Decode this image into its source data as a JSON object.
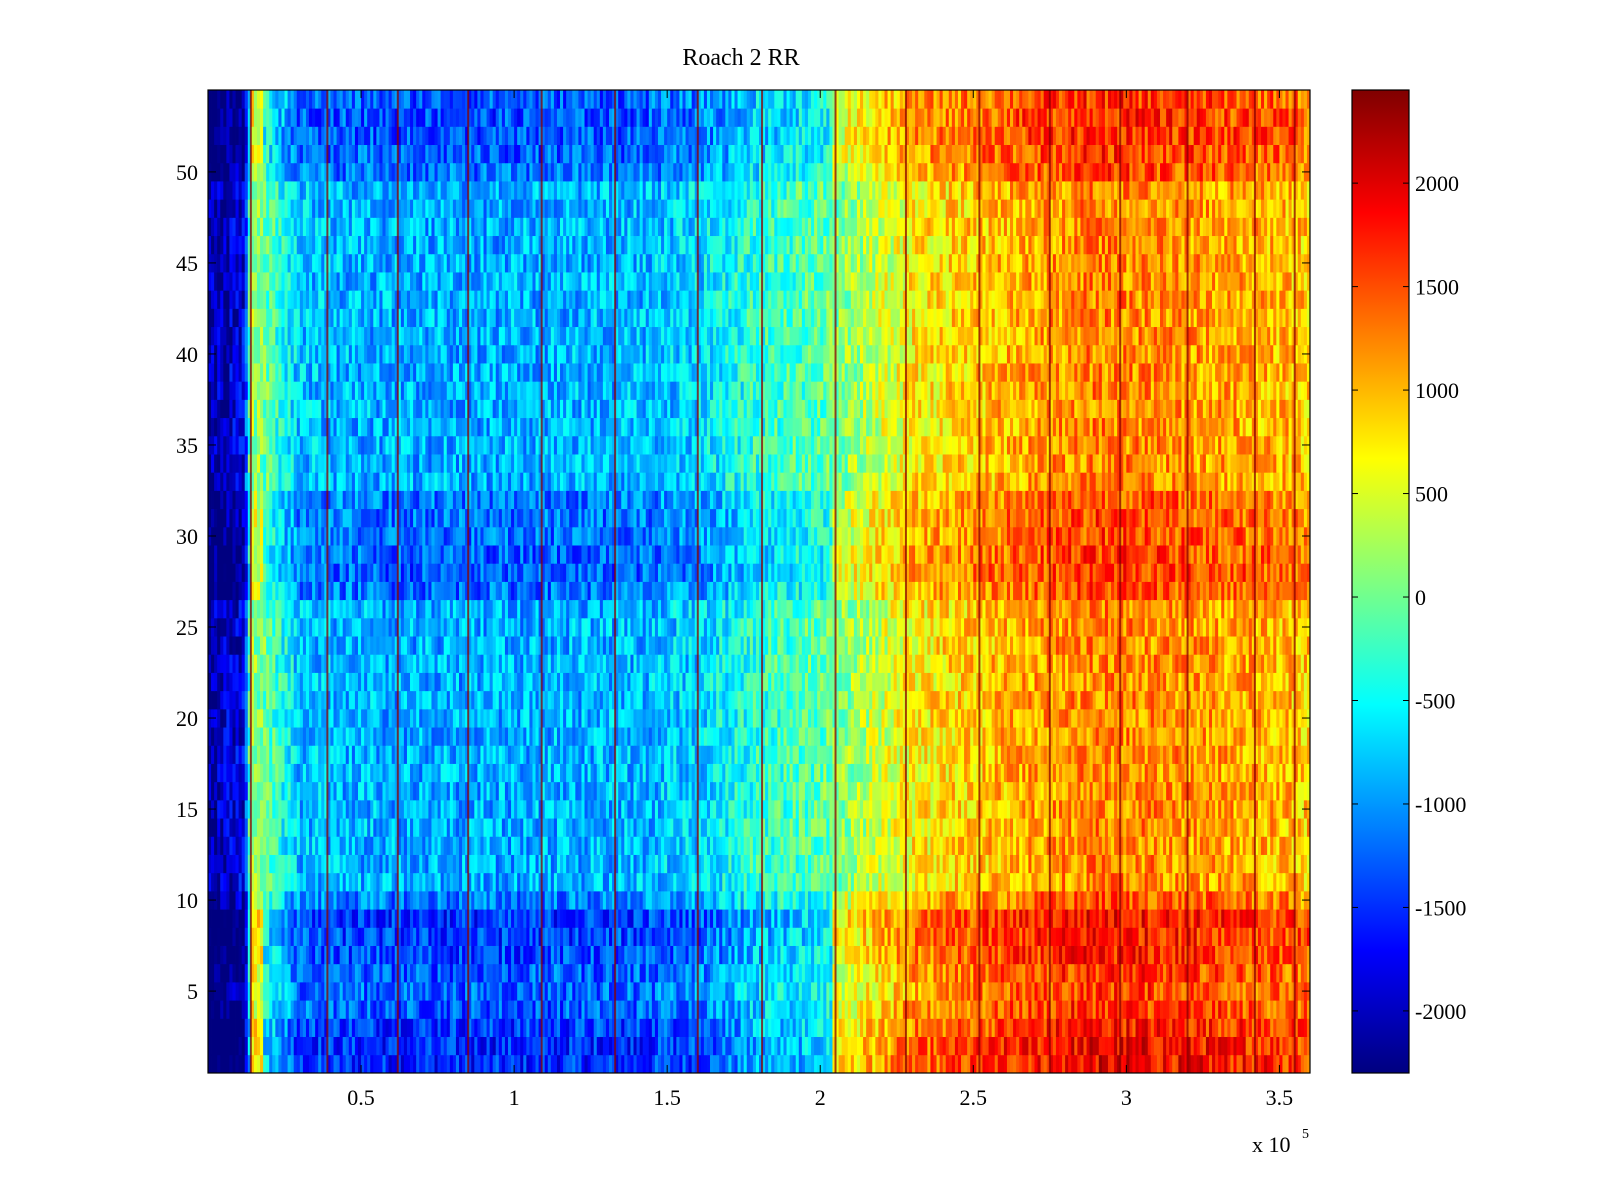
{
  "chart_data": {
    "type": "heatmap",
    "title": "Roach 2 RR",
    "xlabel": "",
    "ylabel": "",
    "x_exponent_label": "x 10",
    "x_exponent_power": "5",
    "xlim": [
      0,
      3.6
    ],
    "ylim": [
      0.5,
      54.5
    ],
    "x_ticks": [
      0.5,
      1,
      1.5,
      2,
      2.5,
      3,
      3.5
    ],
    "x_tick_labels": [
      "0.5",
      "1",
      "1.5",
      "2",
      "2.5",
      "3",
      "3.5"
    ],
    "y_ticks": [
      5,
      10,
      15,
      20,
      25,
      30,
      35,
      40,
      45,
      50
    ],
    "y_tick_labels": [
      "5",
      "10",
      "15",
      "20",
      "25",
      "30",
      "35",
      "40",
      "45",
      "50"
    ],
    "colorbar": {
      "colormap": "jet",
      "clim": [
        -2300,
        2450
      ],
      "ticks": [
        -2000,
        -1500,
        -1000,
        -500,
        0,
        500,
        1000,
        1500,
        2000
      ],
      "tick_labels": [
        "-2000",
        "-1500",
        "-1000",
        "-500",
        "0",
        "500",
        "1000",
        "1500",
        "2000"
      ]
    },
    "rows": 54,
    "column_trend": {
      "x": [
        0,
        0.12,
        0.14,
        0.3,
        0.6,
        1.0,
        1.4,
        1.6,
        1.8,
        2.0,
        2.15,
        2.3,
        2.5,
        2.7,
        2.9,
        3.1,
        3.3,
        3.5,
        3.6
      ],
      "mean_value": [
        -2100,
        -1800,
        300,
        -800,
        -900,
        -900,
        -850,
        -700,
        -300,
        -100,
        300,
        700,
        900,
        1100,
        1250,
        1200,
        1100,
        1000,
        900
      ]
    },
    "row_band_offsets": {
      "rows": [
        1,
        2,
        3,
        4,
        5,
        6,
        7,
        8,
        9,
        10,
        27,
        28,
        29,
        30,
        31,
        32,
        50,
        51,
        52,
        53,
        54
      ],
      "offset": [
        650,
        650,
        550,
        400,
        350,
        400,
        500,
        550,
        600,
        250,
        300,
        400,
        350,
        300,
        300,
        250,
        300,
        400,
        450,
        450,
        400
      ]
    },
    "vertical_stripes_x": [
      0.14,
      0.39,
      0.62,
      0.85,
      1.09,
      1.33,
      1.6,
      1.81,
      2.05,
      2.28,
      2.52,
      2.75,
      2.98,
      3.2,
      3.42,
      3.55
    ]
  }
}
